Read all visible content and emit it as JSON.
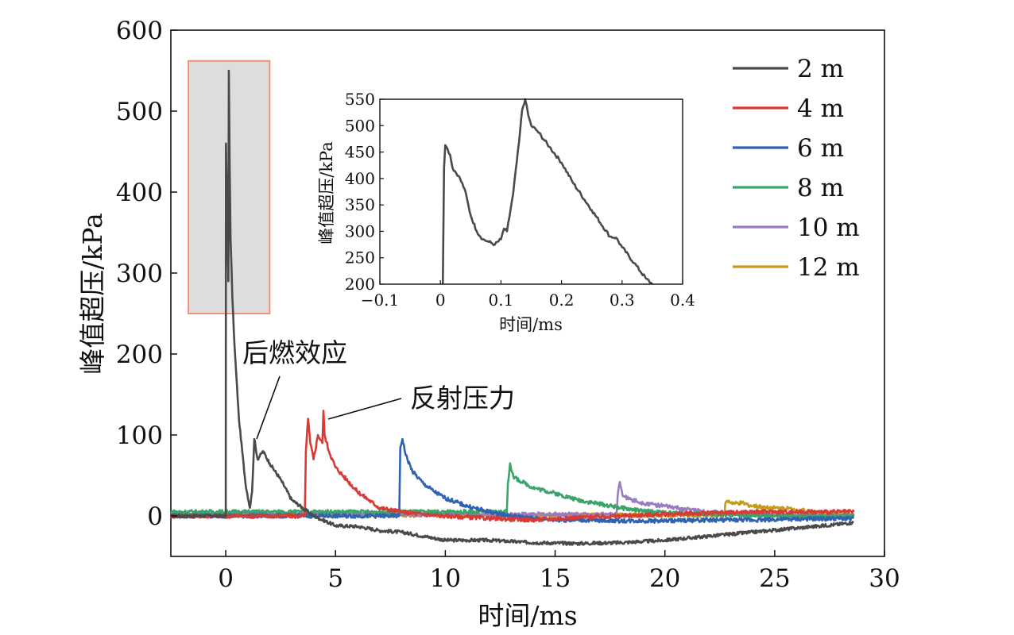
{
  "chart_data": {
    "type": "line",
    "xlabel": "时间/ms",
    "ylabel": "峰值超压/kPa",
    "xlim": [
      -2.5,
      30
    ],
    "ylim": [
      -50,
      600
    ],
    "xticks": [
      "0",
      "5",
      "10",
      "15",
      "20",
      "25",
      "30"
    ],
    "yticks": [
      "0",
      "100",
      "200",
      "300",
      "400",
      "500",
      "600"
    ],
    "legend_position": "top-right",
    "series": [
      {
        "name": "2 m",
        "color": "#4a4a4a",
        "x": [
          -2.5,
          0,
          0.01,
          0.02,
          0.06,
          0.1,
          0.12,
          0.14,
          0.18,
          0.22,
          0.26,
          0.3,
          0.4,
          0.6,
          0.9,
          1.1,
          1.2,
          1.3,
          1.45,
          1.7,
          2.0,
          2.5,
          3.0,
          3.5,
          4.0,
          5.0,
          6.0,
          7.0,
          8.0,
          9.0,
          10.0,
          11.0,
          12.0,
          14.0,
          16.0,
          18.0,
          20.0,
          22.0,
          24.0,
          26.0,
          28.0,
          28.6
        ],
        "y": [
          0,
          0,
          460,
          440,
          390,
          320,
          290,
          550,
          430,
          340,
          310,
          270,
          210,
          120,
          40,
          10,
          30,
          95,
          70,
          80,
          65,
          45,
          20,
          10,
          0,
          -12,
          -13,
          -18,
          -20,
          -25,
          -30,
          -30,
          -30,
          -33,
          -34,
          -33,
          -30,
          -25,
          -20,
          -15,
          -10,
          -8
        ]
      },
      {
        "name": "4 m",
        "color": "#d83a35",
        "x": [
          -2.5,
          3.6,
          3.65,
          3.75,
          3.85,
          4.0,
          4.2,
          4.4,
          4.45,
          4.5,
          4.7,
          5.0,
          5.5,
          6.0,
          6.5,
          7.0,
          8.0,
          9.0,
          10.0,
          12.0,
          14.0,
          16.0,
          18.0,
          20.0,
          24.0,
          28.6
        ],
        "y": [
          0,
          0,
          80,
          120,
          90,
          70,
          100,
          90,
          130,
          100,
          80,
          60,
          45,
          30,
          20,
          10,
          5,
          2,
          0,
          -3,
          -5,
          -2,
          0,
          2,
          5,
          5
        ]
      },
      {
        "name": "6 m",
        "color": "#2f62b0",
        "x": [
          -2.5,
          7.9,
          7.95,
          8.05,
          8.2,
          8.5,
          9.0,
          9.5,
          10.0,
          11.0,
          12.0,
          13.0,
          14.0,
          15.0,
          16.0,
          18.0,
          20.0,
          22.0,
          24.0,
          26.0,
          28.6
        ],
        "y": [
          0,
          0,
          85,
          95,
          75,
          55,
          40,
          30,
          22,
          12,
          5,
          0,
          -3,
          -5,
          -5,
          -6,
          -6,
          -5,
          -5,
          -4,
          -3
        ]
      },
      {
        "name": "8 m",
        "color": "#3aa46a",
        "x": [
          -2.5,
          12.8,
          12.85,
          12.95,
          13.1,
          13.5,
          14.0,
          15.0,
          16.0,
          17.0,
          18.0,
          19.0,
          20.0,
          22.0,
          24.0,
          26.0,
          28.6
        ],
        "y": [
          5,
          5,
          40,
          65,
          48,
          42,
          35,
          28,
          20,
          15,
          10,
          6,
          4,
          2,
          0,
          0,
          0
        ]
      },
      {
        "name": "10 m",
        "color": "#9b7cbe",
        "x": [
          -2.5,
          17.8,
          17.85,
          17.95,
          18.1,
          18.5,
          19.0,
          20.0,
          21.0,
          22.0,
          24.0,
          26.0,
          28.6
        ],
        "y": [
          2,
          2,
          25,
          42,
          24,
          20,
          16,
          12,
          8,
          5,
          2,
          0,
          0
        ]
      },
      {
        "name": "12 m",
        "color": "#c79a1a",
        "x": [
          -2.5,
          22.7,
          22.75,
          22.85,
          23.2,
          23.5,
          24.0,
          25.0,
          26.0,
          27.0,
          28.6
        ],
        "y": [
          1,
          1,
          15,
          18,
          15,
          16,
          12,
          10,
          8,
          4,
          1
        ]
      }
    ],
    "highlight_box": {
      "x": [
        -1.7,
        2.0
      ],
      "y": [
        250,
        562
      ]
    },
    "inset": {
      "xlabel": "时间/ms",
      "ylabel": "峰值超压/kPa",
      "xlim": [
        -0.1,
        0.4
      ],
      "ylim": [
        200,
        550
      ],
      "xticks": [
        "−0.1",
        "0",
        "0.1",
        "0.2",
        "0.3",
        "0.4"
      ],
      "yticks": [
        "200",
        "250",
        "300",
        "350",
        "400",
        "450",
        "500",
        "550"
      ],
      "series_name": "2 m",
      "x": [
        0.004,
        0.006,
        0.008,
        0.012,
        0.016,
        0.02,
        0.03,
        0.04,
        0.05,
        0.06,
        0.07,
        0.08,
        0.09,
        0.1,
        0.105,
        0.11,
        0.12,
        0.13,
        0.135,
        0.14,
        0.145,
        0.15,
        0.16,
        0.18,
        0.2,
        0.22,
        0.25,
        0.28,
        0.29,
        0.3,
        0.32,
        0.34,
        0.35
      ],
      "y": [
        200,
        420,
        463,
        455,
        445,
        420,
        405,
        380,
        330,
        300,
        285,
        280,
        275,
        285,
        305,
        300,
        370,
        470,
        530,
        550,
        520,
        500,
        490,
        460,
        430,
        390,
        340,
        290,
        288,
        270,
        240,
        210,
        200
      ]
    },
    "annotations": [
      {
        "text": "后燃效应",
        "target_x": 1.3,
        "target_y": 95
      },
      {
        "text": "反射压力",
        "target_x": 4.5,
        "target_y": 118
      }
    ]
  }
}
